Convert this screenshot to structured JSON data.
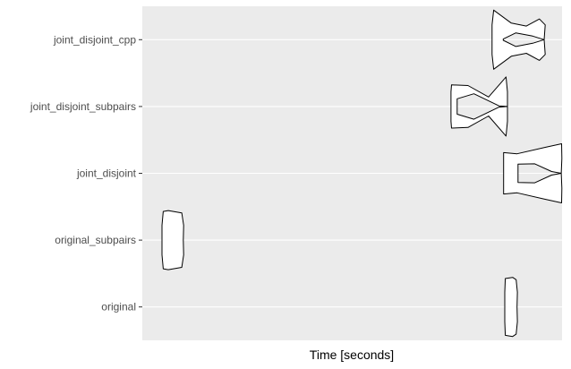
{
  "chart_data": {
    "type": "violin",
    "title": "",
    "xlabel": "Time [seconds]",
    "ylabel": "",
    "orientation": "horizontal",
    "x_tick_labels": [],
    "grid": true,
    "legend": "none",
    "categories": [
      "original",
      "original_subpairs",
      "joint_disjoint",
      "joint_disjoint_subpairs",
      "joint_disjoint_cpp"
    ],
    "xlim": [
      0,
      1
    ],
    "series": [
      {
        "category": "original",
        "profile": [
          [
            0.8635,
            0.0
          ],
          [
            0.8635,
            0.5
          ],
          [
            0.8649,
            0.96
          ],
          [
            0.8824,
            1.0
          ],
          [
            0.8907,
            0.92
          ],
          [
            0.8935,
            0.5
          ],
          [
            0.8927,
            0.0
          ]
        ]
      },
      {
        "category": "original_subpairs",
        "profile": [
          [
            0.047,
            0.0
          ],
          [
            0.047,
            0.5
          ],
          [
            0.05,
            0.97
          ],
          [
            0.0619,
            1.0
          ],
          [
            0.094,
            0.92
          ],
          [
            0.0986,
            0.5
          ],
          [
            0.0976,
            0.0
          ]
        ]
      },
      {
        "category": "joint_disjoint",
        "profile": [
          [
            0.8608,
            0.28
          ],
          [
            0.8608,
            0.5
          ],
          [
            0.8608,
            0.7
          ],
          [
            0.893,
            0.66
          ],
          [
            0.96,
            0.88
          ],
          [
            0.9989,
            1.0
          ],
          [
            0.9996,
            0.5
          ],
          [
            0.998,
            0.0
          ],
          [
            0.975,
            0.06
          ],
          [
            0.935,
            0.32
          ],
          [
            0.895,
            0.31
          ]
        ]
      },
      {
        "category": "joint_disjoint_subpairs",
        "profile": [
          [
            0.7355,
            0.27
          ],
          [
            0.7355,
            0.5
          ],
          [
            0.7366,
            0.73
          ],
          [
            0.776,
            0.71
          ],
          [
            0.825,
            0.32
          ],
          [
            0.8666,
            1.0
          ],
          [
            0.87,
            0.5
          ],
          [
            0.87,
            0.0
          ],
          [
            0.85,
            0.02
          ],
          [
            0.79,
            0.43
          ],
          [
            0.75,
            0.26
          ]
        ]
      },
      {
        "category": "joint_disjoint_cpp",
        "profile": [
          [
            0.8332,
            0.0
          ],
          [
            0.8332,
            0.5
          ],
          [
            0.837,
            1.0
          ],
          [
            0.879,
            0.56
          ],
          [
            0.915,
            0.46
          ],
          [
            0.946,
            0.7
          ],
          [
            0.96,
            0.5
          ],
          [
            0.9573,
            0.0
          ],
          [
            0.93,
            0.12
          ],
          [
            0.89,
            0.23
          ],
          [
            0.86,
            0.02
          ]
        ]
      }
    ]
  }
}
